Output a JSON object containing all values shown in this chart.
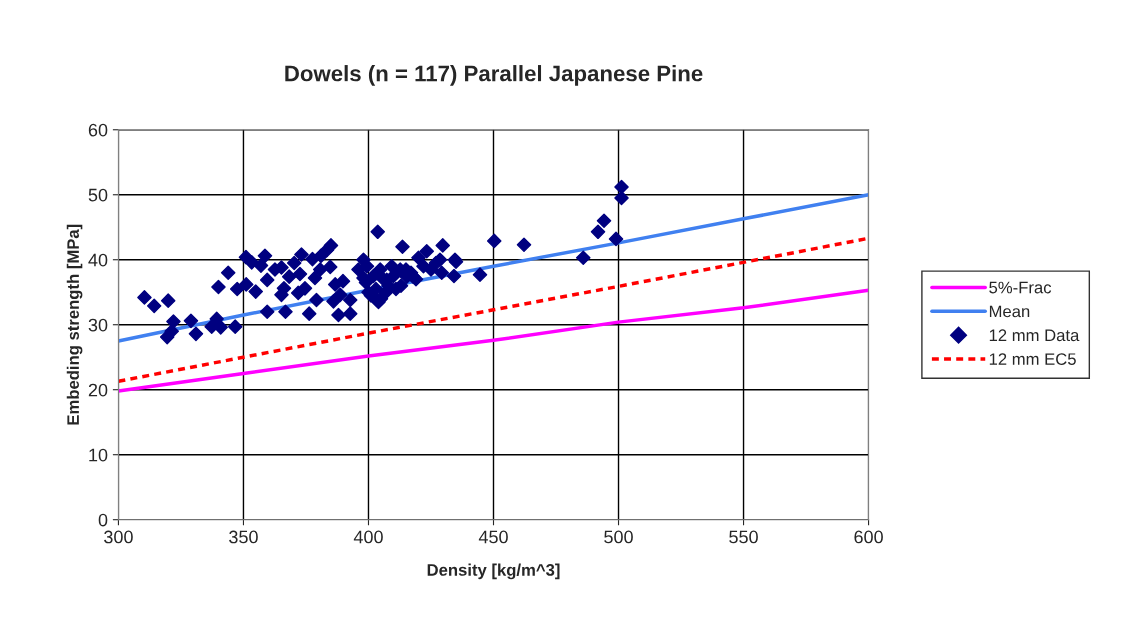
{
  "chart_data": {
    "type": "line",
    "title": "Dowels (n = 117) Parallel Japanese Pine",
    "xlabel": "Density [kg/m^3]",
    "ylabel": "Embeding strength [MPa]",
    "xlim": [
      300,
      600
    ],
    "xticks": [
      300,
      350,
      400,
      450,
      500,
      550,
      600
    ],
    "ylim": [
      0,
      60
    ],
    "yticks": [
      0,
      10,
      20,
      30,
      40,
      50,
      60
    ],
    "grid": true,
    "legend": "right",
    "series": [
      {
        "name": "5%-Frac",
        "color": "#ff00ff",
        "line_style": "solid",
        "marker": "none",
        "x": [
          300,
          350,
          400,
          450,
          500,
          550,
          600
        ],
        "values": [
          19.8,
          22.5,
          25.2,
          27.6,
          30.4,
          32.6,
          35.3
        ]
      },
      {
        "name": "Mean",
        "color": "#4080f0",
        "line_style": "solid",
        "marker": "none",
        "x": [
          300,
          350,
          400,
          450,
          500,
          550,
          600
        ],
        "values": [
          27.5,
          31.5,
          35.3,
          39.0,
          42.6,
          46.3,
          50.0
        ]
      },
      {
        "name": "12 mm Data",
        "type": "scatter",
        "color": "#000080",
        "marker": "diamond",
        "x": [
          310.4,
          314.3,
          319.9,
          322.0,
          321.3,
          319.5,
          329.0,
          331.0,
          337.3,
          339.3,
          340.9,
          346.7,
          340.0,
          343.9,
          347.5,
          351.0,
          351.1,
          354.9,
          353.3,
          357.0,
          358.6,
          359.5,
          359.5,
          362.6,
          365.2,
          365.2,
          366.2,
          366.8,
          368.3,
          370.3,
          372.6,
          373.2,
          371.9,
          376.3,
          377.6,
          378.6,
          379.2,
          374.6,
          403.7,
          413.6,
          429.7,
          383.4,
          385.0,
          381.0,
          384.7,
          380.7,
          386.7,
          389.8,
          388.7,
          386.0,
          392.7,
          388.0,
          392.7,
          398.0,
          399.4,
          396.0,
          398.0,
          403.4,
          404.7,
          407.3,
          409.3,
          412.7,
          415.3,
          417.9,
          420.0,
          423.3,
          422.0,
          428.6,
          429.3,
          434.6,
          434.2,
          444.6,
          435.0,
          450.3,
          462.2,
          485.9,
          491.8,
          494.2,
          499.0,
          501.2,
          501.2,
          400.0,
          401.0,
          403.0,
          405.0,
          406.0,
          408.0,
          410.0,
          411.0,
          402.0,
          399.0,
          404.0,
          407.0,
          413.0,
          415.0,
          417.0,
          419.0,
          425.0,
          427.0
        ],
        "values": [
          34.2,
          32.9,
          33.7,
          30.5,
          29.0,
          28.1,
          30.6,
          28.6,
          29.7,
          30.9,
          29.6,
          29.7,
          35.8,
          38.0,
          35.5,
          40.4,
          36.2,
          35.1,
          39.6,
          39.1,
          40.6,
          36.9,
          32.0,
          38.5,
          38.8,
          34.6,
          35.6,
          32.0,
          37.4,
          39.5,
          37.8,
          40.8,
          34.9,
          31.7,
          40.1,
          37.2,
          33.8,
          35.6,
          44.3,
          42.0,
          42.2,
          41.5,
          42.2,
          40.6,
          38.9,
          38.5,
          36.2,
          36.7,
          34.6,
          33.6,
          33.8,
          31.5,
          31.7,
          40.0,
          39.0,
          38.5,
          37.2,
          33.8,
          38.5,
          36.9,
          39.0,
          38.5,
          37.4,
          37.4,
          40.3,
          41.3,
          39.0,
          40.0,
          38.0,
          40.0,
          37.5,
          37.7,
          39.7,
          42.9,
          42.3,
          40.3,
          44.3,
          46.0,
          43.2,
          49.5,
          51.2,
          35.0,
          34.5,
          35.5,
          34.0,
          37.0,
          36.0,
          37.5,
          35.5,
          37.5,
          36.5,
          33.5,
          35.0,
          36.0,
          38.5,
          38.0,
          37.0,
          38.5,
          39.5
        ]
      },
      {
        "name": "12 mm EC5",
        "color": "#ff0000",
        "line_style": "dotted",
        "marker": "none",
        "x": [
          300,
          350,
          400,
          450,
          500,
          550,
          600
        ],
        "values": [
          21.3,
          25.0,
          28.7,
          32.3,
          35.9,
          39.6,
          43.3
        ]
      }
    ]
  }
}
